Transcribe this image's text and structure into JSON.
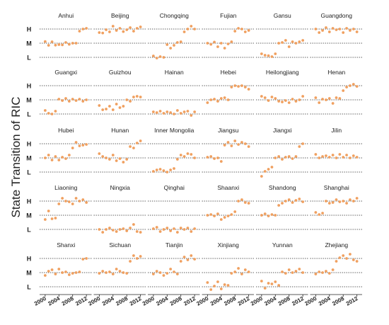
{
  "chart_data": {
    "type": "scatter",
    "ylabel": "State Transition of RIC",
    "xlabel": "",
    "y_levels": [
      "L",
      "M",
      "H"
    ],
    "x_ticks": [
      2000,
      2004,
      2008,
      2012
    ],
    "xlim": [
      1999,
      2013
    ],
    "grid": "dotted horizontal at each level",
    "point_color": "#f0a060",
    "series": [
      {
        "name": "Anhui",
        "x": [
          2000,
          2001,
          2002,
          2003,
          2004,
          2005,
          2006,
          2007,
          2008,
          2009,
          2010,
          2011,
          2012
        ],
        "y": [
          1.12,
          0.85,
          1.1,
          0.86,
          0.9,
          0.88,
          1.05,
          0.92,
          1.0,
          1.0,
          1.85,
          2.0,
          2.05
        ]
      },
      {
        "name": "Beijing",
        "x": [
          2000,
          2001,
          2002,
          2003,
          2004,
          2005,
          2006,
          2007,
          2008,
          2009,
          2010,
          2011,
          2012
        ],
        "y": [
          1.75,
          1.72,
          1.95,
          1.8,
          2.2,
          1.9,
          2.05,
          1.82,
          1.95,
          2.1,
          1.85,
          2.05,
          2.15
        ]
      },
      {
        "name": "Chongqing",
        "x": [
          2000,
          2001,
          2002,
          2003,
          2004,
          2005,
          2006,
          2007,
          2008,
          2009,
          2010,
          2011,
          2012
        ],
        "y": [
          0.1,
          -0.05,
          0.05,
          0.0,
          0.9,
          0.65,
          0.85,
          1.05,
          1.1,
          1.8,
          2.0,
          2.2,
          2.0
        ]
      },
      {
        "name": "Fujian",
        "x": [
          2000,
          2001,
          2002,
          2003,
          2004,
          2005,
          2006,
          2007,
          2008,
          2009,
          2010,
          2011,
          2012
        ],
        "y": [
          1.0,
          0.92,
          1.08,
          0.75,
          1.0,
          0.65,
          0.95,
          1.1,
          1.85,
          2.05,
          2.0,
          1.8,
          1.9
        ]
      },
      {
        "name": "Gansu",
        "x": [
          2000,
          2001,
          2002,
          2003,
          2004,
          2005,
          2006,
          2007,
          2008,
          2009,
          2010,
          2011,
          2012
        ],
        "y": [
          0.25,
          0.15,
          0.12,
          0.05,
          0.25,
          1.0,
          1.05,
          1.2,
          0.75,
          1.1,
          1.0,
          1.1,
          1.2
        ]
      },
      {
        "name": "Guangdong",
        "x": [
          2000,
          2001,
          2002,
          2003,
          2004,
          2005,
          2006,
          2007,
          2008,
          2009,
          2010,
          2011,
          2012
        ],
        "y": [
          2.0,
          1.75,
          1.9,
          2.1,
          1.8,
          2.05,
          1.95,
          2.0,
          1.75,
          2.05,
          1.9,
          2.0,
          1.8
        ]
      },
      {
        "name": "Guangxi",
        "x": [
          2000,
          2001,
          2002,
          2003,
          2004,
          2005,
          2006,
          2007,
          2008,
          2009,
          2010,
          2011,
          2012
        ],
        "y": [
          0.25,
          0.05,
          0.0,
          0.2,
          1.05,
          0.95,
          1.1,
          0.9,
          1.05,
          0.95,
          1.05,
          0.9,
          1.0
        ]
      },
      {
        "name": "Guizhou",
        "x": [
          2000,
          2001,
          2002,
          2003,
          2004,
          2005,
          2006,
          2007,
          2008,
          2009,
          2010,
          2011,
          2012
        ],
        "y": [
          0.6,
          0.3,
          0.35,
          0.55,
          0.3,
          0.7,
          0.45,
          0.55,
          1.0,
          0.9,
          1.2,
          1.25,
          1.2
        ]
      },
      {
        "name": "Hainan",
        "x": [
          2000,
          2001,
          2002,
          2003,
          2004,
          2005,
          2006,
          2007,
          2008,
          2009,
          2010,
          2011,
          2012
        ],
        "y": [
          0.15,
          0.1,
          0.2,
          0.05,
          0.15,
          0.1,
          0.0,
          0.25,
          0.05,
          0.15,
          0.2,
          -0.1,
          0.15
        ]
      },
      {
        "name": "Hebei",
        "x": [
          2000,
          2001,
          2002,
          2003,
          2004,
          2005,
          2006,
          2007,
          2008,
          2009,
          2010,
          2011,
          2012
        ],
        "y": [
          0.8,
          1.0,
          1.05,
          0.9,
          1.1,
          1.15,
          1.0,
          1.9,
          2.0,
          1.95,
          2.0,
          1.9,
          1.75
        ]
      },
      {
        "name": "Heilongjiang",
        "x": [
          2000,
          2001,
          2002,
          2003,
          2004,
          2005,
          2006,
          2007,
          2008,
          2009,
          2010,
          2011,
          2012
        ],
        "y": [
          1.25,
          1.15,
          0.95,
          1.2,
          1.1,
          0.9,
          0.85,
          0.95,
          0.8,
          1.05,
          0.9,
          1.0,
          1.25
        ]
      },
      {
        "name": "Henan",
        "x": [
          2000,
          2001,
          2002,
          2003,
          2004,
          2005,
          2006,
          2007,
          2008,
          2009,
          2010,
          2011,
          2012
        ],
        "y": [
          1.15,
          0.8,
          1.05,
          1.0,
          1.1,
          0.75,
          1.15,
          1.1,
          1.65,
          1.9,
          2.0,
          2.1,
          1.95
        ]
      },
      {
        "name": "Hubei",
        "x": [
          2000,
          2001,
          2002,
          2003,
          2004,
          2005,
          2006,
          2007,
          2008,
          2009,
          2010,
          2011,
          2012
        ],
        "y": [
          1.0,
          1.2,
          0.85,
          1.1,
          0.85,
          1.05,
          0.95,
          1.2,
          1.7,
          2.1,
          1.85,
          1.9,
          1.95
        ]
      },
      {
        "name": "Hunan",
        "x": [
          2000,
          2001,
          2002,
          2003,
          2004,
          2005,
          2006,
          2007,
          2008,
          2009,
          2010,
          2011,
          2012
        ],
        "y": [
          1.3,
          1.1,
          1.0,
          0.9,
          1.2,
          0.8,
          0.95,
          0.7,
          0.9,
          1.8,
          1.7,
          2.05,
          2.2
        ]
      },
      {
        "name": "Inner Mongolia",
        "x": [
          2000,
          2001,
          2002,
          2003,
          2004,
          2005,
          2006,
          2007,
          2008,
          2009,
          2010,
          2011,
          2012
        ],
        "y": [
          0.05,
          0.15,
          0.2,
          0.1,
          0.0,
          0.15,
          0.25,
          0.9,
          1.2,
          1.1,
          1.3,
          1.25,
          1.0
        ]
      },
      {
        "name": "Jiangsu",
        "x": [
          2000,
          2001,
          2002,
          2003,
          2004,
          2005,
          2006,
          2007,
          2008,
          2009,
          2010,
          2011,
          2012
        ],
        "y": [
          1.05,
          1.1,
          0.95,
          1.0,
          0.75,
          1.9,
          2.1,
          1.85,
          2.2,
          1.95,
          2.1,
          2.0,
          1.8
        ]
      },
      {
        "name": "Jiangxi",
        "x": [
          2000,
          2001,
          2002,
          2003,
          2004,
          2005,
          2006,
          2007,
          2008,
          2009,
          2010,
          2011,
          2012
        ],
        "y": [
          -0.3,
          0.05,
          0.2,
          0.35,
          1.0,
          1.1,
          0.9,
          1.05,
          1.1,
          0.95,
          1.1,
          1.8,
          2.0
        ]
      },
      {
        "name": "Jilin",
        "x": [
          2000,
          2001,
          2002,
          2003,
          2004,
          2005,
          2006,
          2007,
          2008,
          2009,
          2010,
          2011,
          2012
        ],
        "y": [
          1.25,
          1.0,
          1.1,
          1.15,
          1.05,
          1.2,
          1.0,
          1.25,
          1.05,
          1.2,
          1.0,
          1.15,
          1.05
        ]
      },
      {
        "name": "Liaoning",
        "x": [
          2000,
          2001,
          2002,
          2003,
          2004,
          2005,
          2006,
          2007,
          2008,
          2009,
          2010,
          2011,
          2012
        ],
        "y": [
          0.7,
          1.3,
          0.75,
          0.8,
          1.8,
          2.2,
          2.0,
          1.95,
          1.8,
          2.2,
          2.0,
          2.1,
          1.9
        ]
      },
      {
        "name": "Ningxia",
        "x": [
          2000,
          2001,
          2002,
          2003,
          2004,
          2005,
          2006,
          2007,
          2008,
          2009,
          2010,
          2011,
          2012
        ],
        "y": [
          0.0,
          -0.2,
          0.0,
          0.1,
          -0.05,
          -0.15,
          0.0,
          0.05,
          -0.1,
          0.1,
          0.35,
          -0.15,
          -0.2
        ]
      },
      {
        "name": "Qinghai",
        "x": [
          2000,
          2001,
          2002,
          2003,
          2004,
          2005,
          2006,
          2007,
          2008,
          2009,
          2010,
          2011,
          2012
        ],
        "y": [
          0.05,
          0.15,
          -0.15,
          0.0,
          0.1,
          -0.1,
          0.05,
          -0.2,
          0.1,
          0.0,
          0.1,
          -0.15,
          0.05
        ]
      },
      {
        "name": "Shaanxi",
        "x": [
          2000,
          2001,
          2002,
          2003,
          2004,
          2005,
          2006,
          2007,
          2008,
          2009,
          2010,
          2011,
          2012
        ],
        "y": [
          1.0,
          1.05,
          0.95,
          1.1,
          0.7,
          0.85,
          0.95,
          1.05,
          1.25,
          2.0,
          2.1,
          1.9,
          1.85
        ]
      },
      {
        "name": "Shandong",
        "x": [
          2000,
          2001,
          2002,
          2003,
          2004,
          2005,
          2006,
          2007,
          2008,
          2009,
          2010,
          2011,
          2012
        ],
        "y": [
          1.0,
          1.1,
          0.95,
          1.05,
          1.0,
          1.7,
          1.85,
          2.0,
          2.1,
          1.9,
          2.05,
          2.15,
          1.95
        ]
      },
      {
        "name": "Shanghai",
        "x": [
          2000,
          2001,
          2002,
          2003,
          2004,
          2005,
          2006,
          2007,
          2008,
          2009,
          2010,
          2011,
          2012
        ],
        "y": [
          1.2,
          1.05,
          1.15,
          2.0,
          1.85,
          1.9,
          2.1,
          1.95,
          2.0,
          1.85,
          2.1,
          2.0,
          2.2
        ]
      },
      {
        "name": "Shanxi",
        "x": [
          2000,
          2001,
          2002,
          2003,
          2004,
          2005,
          2006,
          2007,
          2008,
          2009,
          2010,
          2011,
          2012
        ],
        "y": [
          0.8,
          1.1,
          1.2,
          0.9,
          1.25,
          1.0,
          1.05,
          0.85,
          0.95,
          1.0,
          1.05,
          1.95,
          2.0
        ]
      },
      {
        "name": "Sichuan",
        "x": [
          2000,
          2001,
          2002,
          2003,
          2004,
          2005,
          2006,
          2007,
          2008,
          2009,
          2010,
          2011,
          2012
        ],
        "y": [
          0.95,
          1.1,
          1.0,
          1.05,
          0.9,
          1.25,
          1.1,
          1.0,
          0.95,
          1.8,
          2.2,
          2.0,
          2.15
        ]
      },
      {
        "name": "Tianjin",
        "x": [
          2000,
          2001,
          2002,
          2003,
          2004,
          2005,
          2006,
          2007,
          2008,
          2009,
          2010,
          2011,
          2012
        ],
        "y": [
          0.9,
          1.1,
          1.0,
          0.8,
          0.95,
          1.25,
          1.05,
          0.9,
          1.8,
          2.1,
          1.9,
          2.2,
          1.95
        ]
      },
      {
        "name": "Xinjiang",
        "x": [
          2000,
          2001,
          2002,
          2003,
          2004,
          2005,
          2006,
          2007,
          2008,
          2009,
          2010,
          2011,
          2012
        ],
        "y": [
          0.3,
          -0.2,
          0.05,
          0.35,
          -0.15,
          0.15,
          0.1,
          0.95,
          1.05,
          1.3,
          0.9,
          1.2,
          1.05
        ]
      },
      {
        "name": "Yunnan",
        "x": [
          2000,
          2001,
          2002,
          2003,
          2004,
          2005,
          2006,
          2007,
          2008,
          2009,
          2010,
          2011,
          2012
        ],
        "y": [
          0.4,
          -0.1,
          0.25,
          0.2,
          0.35,
          0.1,
          1.05,
          0.95,
          1.2,
          1.0,
          1.1,
          1.25,
          1.0
        ]
      },
      {
        "name": "Zhejiang",
        "x": [
          2000,
          2001,
          2002,
          2003,
          2004,
          2005,
          2006,
          2007,
          2008,
          2009,
          2010,
          2011,
          2012
        ],
        "y": [
          0.9,
          1.05,
          1.0,
          1.1,
          0.95,
          1.2,
          1.8,
          2.05,
          2.2,
          2.0,
          2.3,
          1.9,
          1.8
        ]
      }
    ]
  }
}
